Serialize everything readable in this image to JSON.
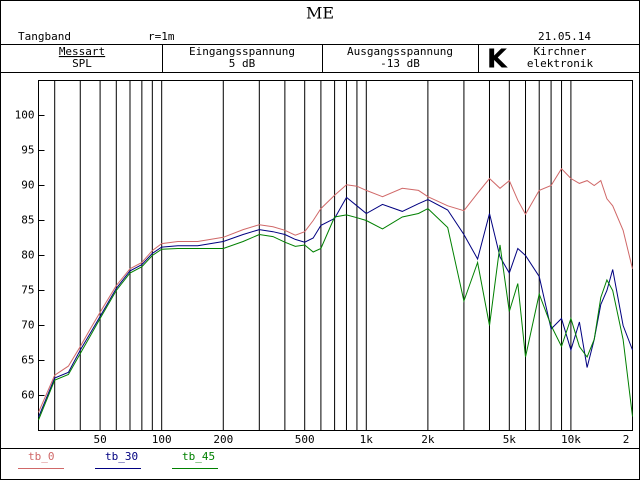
{
  "header": {
    "title": "ME",
    "left": "Tangband",
    "middle": "r=1m",
    "date": "21.05.14",
    "fields": [
      {
        "label": "Messart",
        "value": "SPL"
      },
      {
        "label": "Eingangsspannung",
        "value": "5 dB"
      },
      {
        "label": "Ausgangsspannung",
        "value": "-13 dB"
      }
    ],
    "logo": "K",
    "company": [
      "Kirchner",
      "elektronik"
    ]
  },
  "chart_data": {
    "type": "line",
    "xscale": "log",
    "xlim": [
      25,
      20000
    ],
    "ylim": [
      55,
      105
    ],
    "xticks": [
      50,
      100,
      200,
      500,
      {
        "value": 1000,
        "label": "1k"
      },
      {
        "value": 2000,
        "label": "2k"
      },
      {
        "value": 5000,
        "label": "5k"
      },
      {
        "value": 10000,
        "label": "10k"
      },
      {
        "value": 20000,
        "label": "2"
      }
    ],
    "xgrid_minor": [
      30,
      40,
      60,
      70,
      80,
      90,
      300,
      400,
      600,
      700,
      800,
      900,
      3000,
      4000,
      6000,
      7000,
      8000,
      9000
    ],
    "yticks": [
      60,
      65,
      70,
      75,
      80,
      85,
      90,
      95,
      100
    ],
    "x": [
      25,
      30,
      35,
      40,
      45,
      50,
      60,
      70,
      80,
      90,
      100,
      120,
      150,
      200,
      250,
      300,
      350,
      400,
      450,
      500,
      550,
      600,
      700,
      800,
      900,
      1000,
      1200,
      1500,
      1800,
      2000,
      2500,
      3000,
      3500,
      4000,
      4500,
      5000,
      5500,
      6000,
      7000,
      8000,
      9000,
      10000,
      11000,
      12000,
      13000,
      14000,
      15000,
      16000,
      18000,
      20000
    ],
    "series": [
      {
        "name": "tb_0",
        "color": "#d06868",
        "values": [
          57.6,
          62.9,
          64.2,
          67,
          69.6,
          71.9,
          75.7,
          78.1,
          79,
          80.7,
          81.7,
          82,
          82,
          82.6,
          83.7,
          84.4,
          84.1,
          83.6,
          82.9,
          83.4,
          85,
          86.7,
          88.6,
          90.1,
          89.9,
          89.3,
          88.4,
          89.6,
          89.3,
          88.4,
          87.1,
          86.4,
          88.9,
          91,
          89.6,
          90.7,
          87.9,
          85.9,
          89.3,
          90,
          92.4,
          91,
          90.3,
          90.7,
          90,
          90.7,
          88.1,
          87.1,
          83.6,
          78.1
        ]
      },
      {
        "name": "tb_30",
        "color": "#000080",
        "values": [
          56.9,
          62.5,
          63.3,
          66.5,
          69,
          71.3,
          75.3,
          77.8,
          78.7,
          80.3,
          81.2,
          81.4,
          81.4,
          82,
          83,
          83.7,
          83.4,
          83,
          82.3,
          81.9,
          82.5,
          84.3,
          85.3,
          88.3,
          87.1,
          86,
          87.3,
          86.3,
          87.4,
          88,
          86.5,
          83,
          79.5,
          86,
          79.8,
          77.5,
          81,
          80,
          77,
          69.5,
          71,
          66.5,
          70.5,
          64,
          68,
          73,
          75,
          78,
          70,
          66.5
        ]
      },
      {
        "name": "tb_45",
        "color": "#008000",
        "values": [
          56.5,
          62.2,
          63,
          66,
          68.6,
          71,
          75,
          77.5,
          78.4,
          80,
          80.9,
          81,
          81,
          81,
          82,
          83,
          82.7,
          81.9,
          81.3,
          81.5,
          80.5,
          81,
          85.5,
          85.8,
          85.4,
          85,
          83.8,
          85.5,
          86,
          86.7,
          84,
          73.5,
          79,
          70,
          81.5,
          72,
          76,
          65.5,
          74.5,
          70,
          67,
          71,
          67,
          65.5,
          68,
          74,
          76.5,
          75,
          68,
          57
        ]
      }
    ]
  }
}
